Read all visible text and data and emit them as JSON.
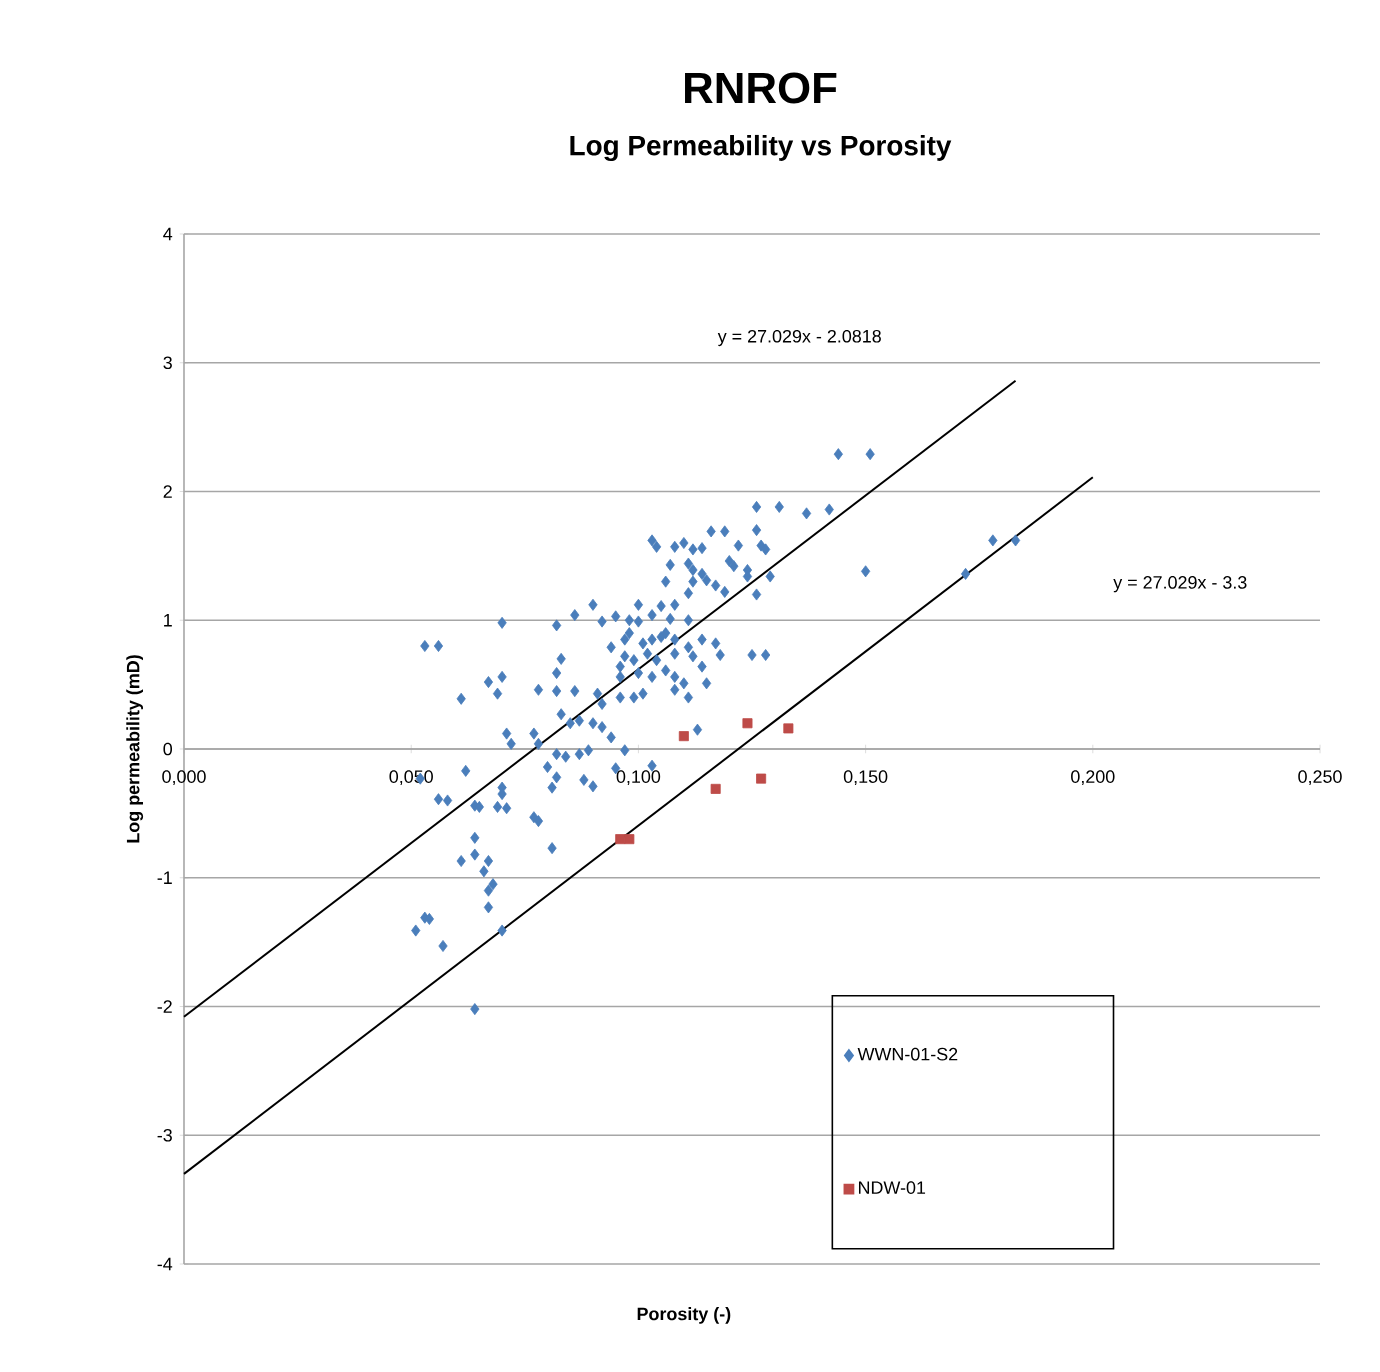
{
  "chart_data": {
    "type": "scatter",
    "title": "RNROF",
    "subtitle": "Log Permeability vs Porosity",
    "xlabel": "Porosity (-)",
    "ylabel": "Log permeability (mD)",
    "xlim": [
      0,
      0.25
    ],
    "ylim": [
      -4,
      4
    ],
    "xticks": [
      {
        "value": 0,
        "label": "0,000"
      },
      {
        "value": 0.05,
        "label": "0,050"
      },
      {
        "value": 0.1,
        "label": "0,100"
      },
      {
        "value": 0.15,
        "label": "0,150"
      },
      {
        "value": 0.2,
        "label": "0,200"
      },
      {
        "value": 0.25,
        "label": "0,250"
      }
    ],
    "yticks": [
      -4,
      -3,
      -2,
      -1,
      0,
      1,
      2,
      3,
      4
    ],
    "grid": "y",
    "legend": "bottom right",
    "series": [
      {
        "name": "WWN-01-S2",
        "color": "#4a7ebb",
        "marker": "diamond",
        "x": [
          0.144,
          0.151,
          0.126,
          0.131,
          0.137,
          0.142,
          0.15,
          0.103,
          0.104,
          0.108,
          0.11,
          0.112,
          0.114,
          0.116,
          0.119,
          0.122,
          0.126,
          0.127,
          0.128,
          0.107,
          0.111,
          0.112,
          0.114,
          0.115,
          0.12,
          0.121,
          0.124,
          0.124,
          0.129,
          0.126,
          0.106,
          0.112,
          0.111,
          0.117,
          0.119,
          0.09,
          0.1,
          0.105,
          0.108,
          0.095,
          0.092,
          0.098,
          0.1,
          0.103,
          0.107,
          0.111,
          0.07,
          0.082,
          0.086,
          0.053,
          0.056,
          0.094,
          0.098,
          0.097,
          0.101,
          0.103,
          0.105,
          0.106,
          0.108,
          0.111,
          0.114,
          0.117,
          0.118,
          0.125,
          0.128,
          0.097,
          0.096,
          0.099,
          0.102,
          0.104,
          0.108,
          0.112,
          0.114,
          0.083,
          0.082,
          0.07,
          0.067,
          0.069,
          0.061,
          0.078,
          0.082,
          0.086,
          0.096,
          0.1,
          0.103,
          0.106,
          0.108,
          0.11,
          0.115,
          0.108,
          0.111,
          0.091,
          0.092,
          0.096,
          0.099,
          0.101,
          0.083,
          0.085,
          0.087,
          0.09,
          0.092,
          0.071,
          0.072,
          0.077,
          0.078,
          0.082,
          0.084,
          0.087,
          0.08,
          0.089,
          0.097,
          0.094,
          0.113,
          0.095,
          0.103,
          0.082,
          0.081,
          0.088,
          0.09,
          0.052,
          0.062,
          0.056,
          0.058,
          0.07,
          0.07,
          0.064,
          0.065,
          0.069,
          0.071,
          0.077,
          0.078,
          0.064,
          0.081,
          0.061,
          0.064,
          0.067,
          0.066,
          0.068,
          0.067,
          0.067,
          0.053,
          0.054,
          0.051,
          0.057,
          0.07,
          0.064,
          0.178,
          0.183,
          0.172
        ],
        "values": [
          2.29,
          2.29,
          1.88,
          1.88,
          1.83,
          1.86,
          1.38,
          1.62,
          1.57,
          1.57,
          1.6,
          1.55,
          1.56,
          1.69,
          1.69,
          1.58,
          1.7,
          1.58,
          1.55,
          1.43,
          1.44,
          1.39,
          1.36,
          1.31,
          1.46,
          1.42,
          1.39,
          1.34,
          1.34,
          1.2,
          1.3,
          1.3,
          1.21,
          1.27,
          1.22,
          1.12,
          1.12,
          1.11,
          1.12,
          1.03,
          0.99,
          1.0,
          0.99,
          1.04,
          1.01,
          1.0,
          0.98,
          0.96,
          1.04,
          0.8,
          0.8,
          0.79,
          0.9,
          0.85,
          0.82,
          0.85,
          0.87,
          0.9,
          0.85,
          0.79,
          0.85,
          0.82,
          0.73,
          0.73,
          0.73,
          0.72,
          0.64,
          0.69,
          0.74,
          0.69,
          0.74,
          0.72,
          0.64,
          0.7,
          0.59,
          0.56,
          0.52,
          0.43,
          0.39,
          0.46,
          0.45,
          0.45,
          0.56,
          0.59,
          0.56,
          0.61,
          0.56,
          0.51,
          0.51,
          0.46,
          0.4,
          0.43,
          0.35,
          0.4,
          0.4,
          0.43,
          0.27,
          0.2,
          0.22,
          0.2,
          0.17,
          0.12,
          0.04,
          0.12,
          0.04,
          -0.04,
          -0.06,
          -0.04,
          -0.14,
          -0.01,
          -0.01,
          0.09,
          0.15,
          -0.15,
          -0.13,
          -0.22,
          -0.3,
          -0.24,
          -0.29,
          -0.23,
          -0.17,
          -0.39,
          -0.4,
          -0.3,
          -0.35,
          -0.44,
          -0.45,
          -0.45,
          -0.46,
          -0.53,
          -0.56,
          -0.69,
          -0.77,
          -0.87,
          -0.82,
          -0.87,
          -0.95,
          -1.05,
          -1.1,
          -1.23,
          -1.31,
          -1.32,
          -1.41,
          -1.53,
          -1.41,
          -2.02,
          1.62,
          1.62,
          1.36
        ]
      },
      {
        "name": "NDW-01",
        "color": "#be4b48",
        "marker": "square",
        "x": [
          0.11,
          0.124,
          0.133,
          0.117,
          0.127,
          0.096,
          0.098
        ],
        "values": [
          0.1,
          0.2,
          0.16,
          -0.31,
          -0.23,
          -0.7,
          -0.7
        ]
      },
      {
        "type": "line",
        "color": "#000000",
        "marker": "none",
        "x": [
          0,
          0.183
        ],
        "values": [
          -2.08,
          2.86
        ]
      },
      {
        "type": "line",
        "color": "#000000",
        "marker": "none",
        "x": [
          0,
          0.2
        ],
        "values": [
          -3.3,
          2.11
        ]
      }
    ],
    "annotations": [
      "y = 27.029x - 2.0818",
      "y = 27.029x - 3.3"
    ]
  }
}
